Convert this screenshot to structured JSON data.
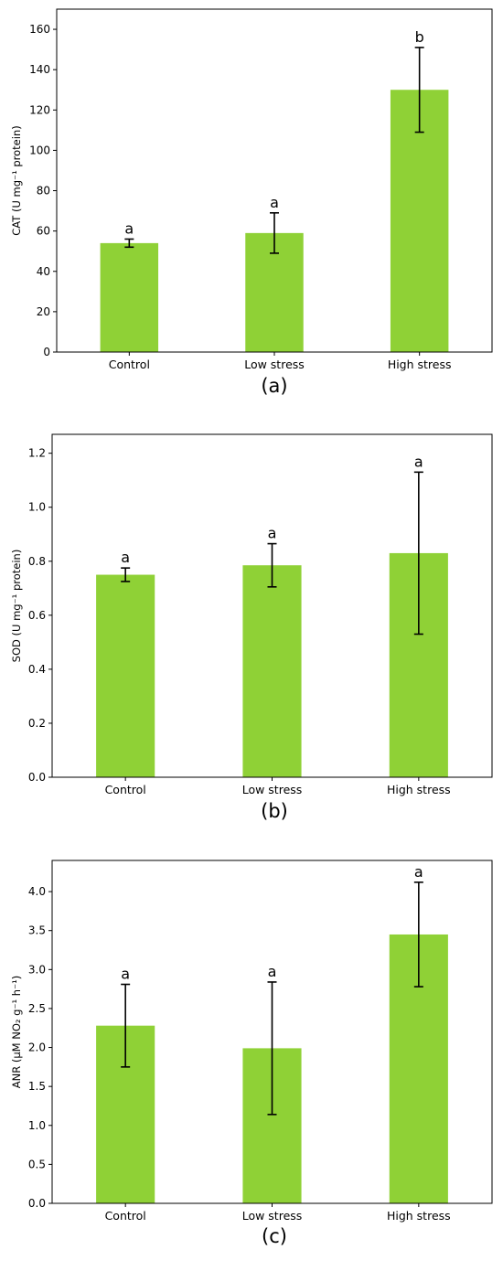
{
  "chart_data": [
    {
      "type": "bar",
      "panel_label": "(a)",
      "ylabel": "CAT (U mg⁻¹ protein)",
      "xlabel": "",
      "categories": [
        "Control",
        "Low stress",
        "High stress"
      ],
      "values": [
        54,
        59,
        130
      ],
      "errors": [
        2,
        10,
        21
      ],
      "significance": [
        "a",
        "a",
        "b"
      ],
      "ylim": [
        0,
        170
      ],
      "yticks": [
        0,
        20,
        40,
        60,
        80,
        100,
        120,
        140,
        160
      ],
      "ytick_labels": [
        "0",
        "20",
        "40",
        "60",
        "80",
        "100",
        "120",
        "140",
        "160"
      ],
      "bar_color": "#8fd136",
      "grid": false
    },
    {
      "type": "bar",
      "panel_label": "(b)",
      "ylabel": "SOD (U mg⁻¹ protein)",
      "xlabel": "",
      "categories": [
        "Control",
        "Low stress",
        "High stress"
      ],
      "values": [
        0.75,
        0.785,
        0.83
      ],
      "errors": [
        0.025,
        0.08,
        0.3
      ],
      "significance": [
        "a",
        "a",
        "a"
      ],
      "ylim": [
        0,
        1.27
      ],
      "yticks": [
        0,
        0.2,
        0.4,
        0.6,
        0.8,
        1.0,
        1.2
      ],
      "ytick_labels": [
        "0.0",
        "0.2",
        "0.4",
        "0.6",
        "0.8",
        "1.0",
        "1.2"
      ],
      "bar_color": "#8fd136",
      "grid": false
    },
    {
      "type": "bar",
      "panel_label": "(c)",
      "ylabel": "ANR (μM NO₂ g⁻¹ h⁻¹)",
      "xlabel": "",
      "categories": [
        "Control",
        "Low stress",
        "High stress"
      ],
      "values": [
        2.28,
        1.99,
        3.45
      ],
      "errors": [
        0.53,
        0.85,
        0.67
      ],
      "significance": [
        "a",
        "a",
        "a"
      ],
      "ylim": [
        0,
        4.4
      ],
      "yticks": [
        0,
        0.5,
        1.0,
        1.5,
        2.0,
        2.5,
        3.0,
        3.5,
        4.0
      ],
      "ytick_labels": [
        "0.0",
        "0.5",
        "1.0",
        "1.5",
        "2.0",
        "2.5",
        "3.0",
        "3.5",
        "4.0"
      ],
      "bar_color": "#8fd136",
      "grid": false
    }
  ]
}
